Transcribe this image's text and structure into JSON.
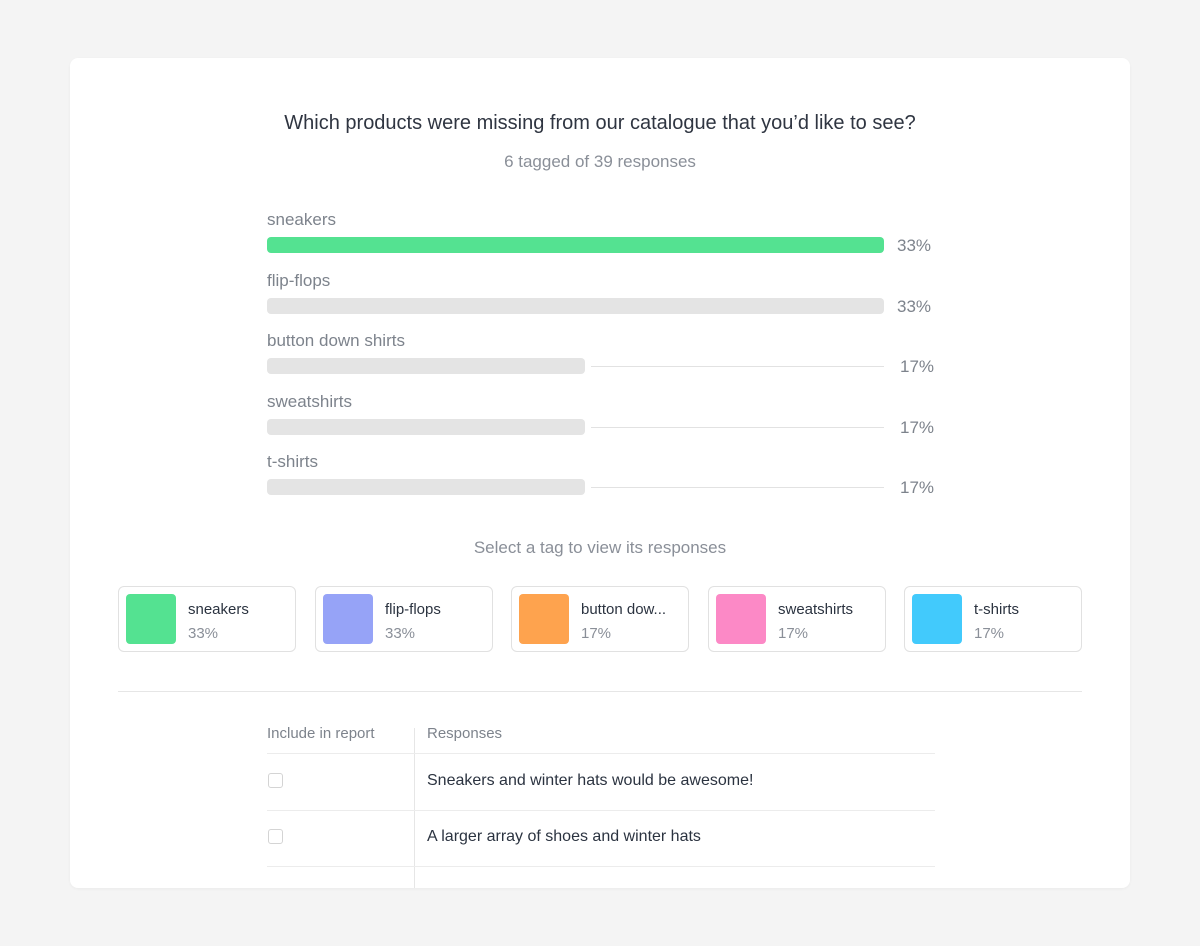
{
  "question": "Which products were missing from our catalogue that you’d like to see?",
  "subtitle": "6 tagged of 39 responses",
  "chart_data": {
    "type": "bar",
    "categories": [
      "sneakers",
      "flip-flops",
      "button down shirts",
      "sweatshirts",
      "t-shirts"
    ],
    "values": [
      33,
      33,
      17,
      17,
      17
    ],
    "value_labels": [
      "33%",
      "33%",
      "17%",
      "17%",
      "17%"
    ],
    "highlighted": "sneakers",
    "colors": {
      "highlight": "#54e291",
      "default": "#e4e4e4"
    },
    "xlim": [
      0,
      33
    ]
  },
  "select_hint": "Select a tag to view its responses",
  "tags": [
    {
      "name": "sneakers",
      "pct": "33%",
      "color": "#54e291"
    },
    {
      "name": "flip-flops",
      "pct": "33%",
      "color": "#96a3f7"
    },
    {
      "name": "button dow...",
      "pct": "17%",
      "color": "#fea34e"
    },
    {
      "name": "sweatshirts",
      "pct": "17%",
      "color": "#fc89c6"
    },
    {
      "name": "t-shirts",
      "pct": "17%",
      "color": "#42cafc"
    }
  ],
  "table": {
    "headers": {
      "include": "Include in report",
      "responses": "Responses"
    },
    "rows": [
      {
        "checked": false,
        "text": "Sneakers and winter hats would be awesome!"
      },
      {
        "checked": false,
        "text": "A larger array of shoes and winter hats"
      }
    ]
  }
}
